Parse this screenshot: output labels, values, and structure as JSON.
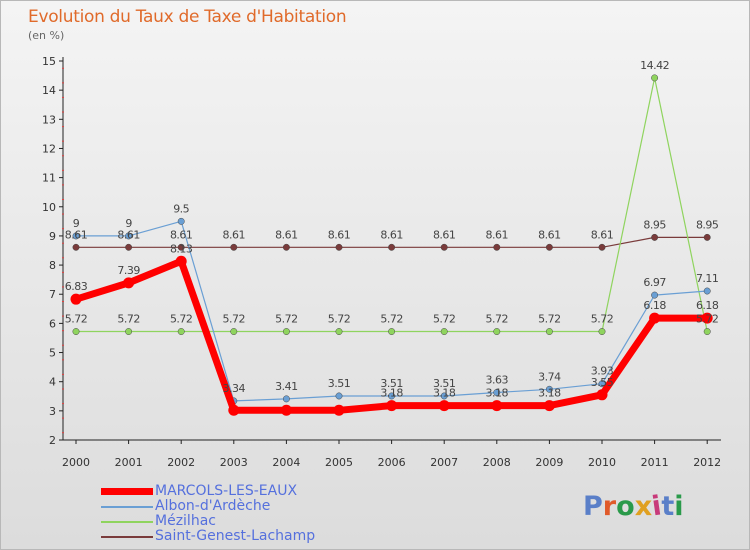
{
  "header": {
    "title": "Evolution du Taux de Taxe d'Habitation",
    "unit": "(en %)"
  },
  "chart_data": {
    "type": "line",
    "title": "Evolution du Taux de Taxe d'Habitation",
    "ylabel": "(en %)",
    "xlabel": "",
    "ylim": [
      2,
      15
    ],
    "yticks": [
      2,
      3,
      4,
      5,
      6,
      7,
      8,
      9,
      10,
      11,
      12,
      13,
      14,
      15
    ],
    "grid": false,
    "categories": [
      "2000",
      "2001",
      "2002",
      "2003",
      "2004",
      "2005",
      "2006",
      "2007",
      "2008",
      "2009",
      "2010",
      "2011",
      "2012"
    ],
    "series": [
      {
        "name": "MARCOLS-LES-EAUX",
        "color": "#ff0000",
        "values": [
          6.83,
          7.39,
          8.13,
          3.02,
          3.02,
          3.02,
          3.18,
          3.18,
          3.18,
          3.18,
          3.55,
          6.18,
          6.18
        ],
        "labels": [
          "6.83",
          "7.39",
          "8.13",
          "",
          "",
          "",
          "3.18",
          "3.18",
          "3.18",
          "3.18",
          "3.55",
          "6.18",
          "6.18"
        ]
      },
      {
        "name": "Albon-d'Ardèche",
        "color": "#6a9fd4",
        "values": [
          9,
          9,
          9.5,
          3.34,
          3.41,
          3.51,
          3.51,
          3.51,
          3.63,
          3.74,
          3.93,
          6.97,
          7.11
        ],
        "labels": [
          "9",
          "9",
          "9.5",
          "3.34",
          "3.41",
          "3.51",
          "3.51",
          "3.51",
          "3.63",
          "3.74",
          "3.93",
          "6.97",
          "7.11"
        ]
      },
      {
        "name": "Mézilhac",
        "color": "#8fd45e",
        "values": [
          5.72,
          5.72,
          5.72,
          5.72,
          5.72,
          5.72,
          5.72,
          5.72,
          5.72,
          5.72,
          5.72,
          14.42,
          5.72
        ],
        "labels": [
          "5.72",
          "5.72",
          "5.72",
          "5.72",
          "5.72",
          "5.72",
          "5.72",
          "5.72",
          "5.72",
          "5.72",
          "5.72",
          "14.42",
          "5.72"
        ]
      },
      {
        "name": "Saint-Genest-Lachamp",
        "color": "#7a3b3b",
        "values": [
          8.61,
          8.61,
          8.61,
          8.61,
          8.61,
          8.61,
          8.61,
          8.61,
          8.61,
          8.61,
          8.61,
          8.95,
          8.95
        ],
        "labels": [
          "8.61",
          "8.61",
          "8.61",
          "8.61",
          "8.61",
          "8.61",
          "8.61",
          "8.61",
          "8.61",
          "8.61",
          "8.61",
          "8.95",
          "8.95"
        ]
      }
    ]
  },
  "legend": {
    "items": [
      {
        "label": "MARCOLS-LES-EAUX",
        "color": "#ff0000",
        "text_color": "#5570dd"
      },
      {
        "label": "Albon-d'Ardèche",
        "color": "#6a9fd4",
        "text_color": "#5570dd"
      },
      {
        "label": "Mézilhac",
        "color": "#8fd45e",
        "text_color": "#5570dd"
      },
      {
        "label": "Saint-Genest-Lachamp",
        "color": "#7a3b3b",
        "text_color": "#5570dd"
      }
    ]
  },
  "logo": {
    "text": "Proxiti",
    "letter_colors": [
      "#5a7fc8",
      "#e05a2a",
      "#2a9a4a",
      "#e0a020",
      "#c83a7a",
      "#5a7fc8",
      "#2a9a4a"
    ]
  }
}
